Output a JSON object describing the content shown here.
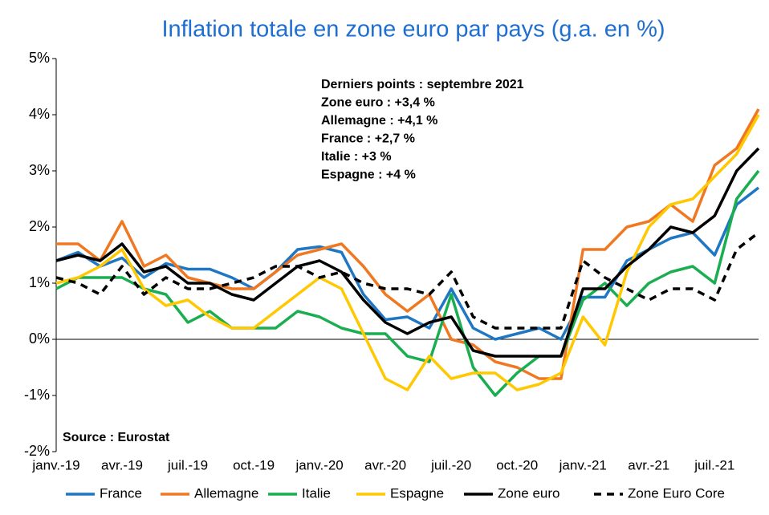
{
  "chart_data": {
    "type": "line",
    "title": "Inflation totale en zone euro par pays (g.a. en %)",
    "categories": [
      "janv.-19",
      null,
      null,
      "avr.-19",
      null,
      null,
      "juil.-19",
      null,
      null,
      "oct.-19",
      null,
      null,
      "janv.-20",
      null,
      null,
      "avr.-20",
      null,
      null,
      "juil.-20",
      null,
      null,
      "oct.-20",
      null,
      null,
      "janv.-21",
      null,
      null,
      "avr.-21",
      null,
      null,
      "juil.-21",
      null,
      null
    ],
    "ylim": [
      -2,
      5
    ],
    "yticks": [
      {
        "value": -2,
        "label": "-2%"
      },
      {
        "value": -1,
        "label": "-1%"
      },
      {
        "value": 0,
        "label": "0%"
      },
      {
        "value": 1,
        "label": "1%"
      },
      {
        "value": 2,
        "label": "2%"
      },
      {
        "value": 3,
        "label": "3%"
      },
      {
        "value": 4,
        "label": "4%"
      },
      {
        "value": 5,
        "label": "5%"
      }
    ],
    "annotations": [
      "Derniers points : septembre 2021",
      "Zone euro :  +3,4 %",
      "Allemagne :  +4,1 %",
      "France :  +2,7 %",
      "Italie :  +3 %",
      "Espagne :  +4 %"
    ],
    "source": "Source : Eurostat",
    "series": [
      {
        "name": "France",
        "color": "#1f77c4",
        "line_style": "solid",
        "values": [
          1.4,
          1.55,
          1.3,
          1.45,
          1.1,
          1.35,
          1.25,
          1.25,
          1.1,
          0.9,
          1.2,
          1.6,
          1.65,
          1.55,
          0.8,
          0.35,
          0.4,
          0.2,
          0.9,
          0.2,
          0.0,
          0.1,
          0.2,
          0.0,
          0.75,
          0.75,
          1.4,
          1.6,
          1.8,
          1.9,
          1.5,
          2.4,
          2.7
        ]
      },
      {
        "name": "Allemagne",
        "color": "#f07820",
        "line_style": "solid",
        "values": [
          1.7,
          1.7,
          1.4,
          2.1,
          1.3,
          1.5,
          1.1,
          1.0,
          0.9,
          0.9,
          1.2,
          1.5,
          1.6,
          1.7,
          1.3,
          0.8,
          0.5,
          0.8,
          0.0,
          -0.1,
          -0.4,
          -0.5,
          -0.7,
          -0.7,
          1.6,
          1.6,
          2.0,
          2.1,
          2.4,
          2.1,
          3.1,
          3.4,
          4.1
        ]
      },
      {
        "name": "Italie",
        "color": "#1aae50",
        "line_style": "solid",
        "values": [
          0.9,
          1.1,
          1.1,
          1.1,
          0.9,
          0.8,
          0.3,
          0.5,
          0.2,
          0.2,
          0.2,
          0.5,
          0.4,
          0.2,
          0.1,
          0.1,
          -0.3,
          -0.4,
          0.8,
          -0.5,
          -1.0,
          -0.6,
          -0.3,
          -0.3,
          0.7,
          1.0,
          0.6,
          1.0,
          1.2,
          1.3,
          1.0,
          2.5,
          3.0
        ]
      },
      {
        "name": "Espagne",
        "color": "#ffc800",
        "line_style": "solid",
        "values": [
          1.0,
          1.1,
          1.3,
          1.6,
          0.9,
          0.6,
          0.7,
          0.4,
          0.2,
          0.2,
          0.5,
          0.8,
          1.1,
          0.9,
          0.1,
          -0.7,
          -0.9,
          -0.3,
          -0.7,
          -0.6,
          -0.6,
          -0.9,
          -0.8,
          -0.6,
          0.4,
          -0.1,
          1.2,
          2.0,
          2.4,
          2.5,
          2.9,
          3.3,
          4.0
        ]
      },
      {
        "name": "Zone euro",
        "color": "#000000",
        "line_style": "solid",
        "values": [
          1.4,
          1.5,
          1.4,
          1.7,
          1.2,
          1.3,
          1.0,
          1.0,
          0.8,
          0.7,
          1.0,
          1.3,
          1.4,
          1.2,
          0.7,
          0.3,
          0.1,
          0.3,
          0.4,
          -0.2,
          -0.3,
          -0.3,
          -0.3,
          -0.3,
          0.9,
          0.9,
          1.3,
          1.6,
          2.0,
          1.9,
          2.2,
          3.0,
          3.4
        ]
      },
      {
        "name": "Zone Euro Core",
        "color": "#000000",
        "line_style": "dashed",
        "values": [
          1.1,
          1.0,
          0.8,
          1.3,
          0.8,
          1.1,
          0.9,
          0.9,
          1.0,
          1.1,
          1.3,
          1.3,
          1.1,
          1.2,
          1.0,
          0.9,
          0.9,
          0.8,
          1.2,
          0.4,
          0.2,
          0.2,
          0.2,
          0.2,
          1.4,
          1.1,
          0.9,
          0.7,
          0.9,
          0.9,
          0.7,
          1.6,
          1.9
        ]
      }
    ]
  }
}
